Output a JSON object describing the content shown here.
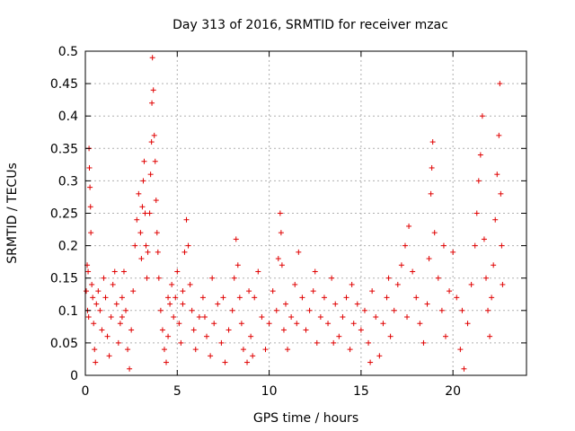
{
  "chart_data": {
    "type": "scatter",
    "title": "Day 313 of 2016, SRMTID for receiver mzac",
    "xlabel": "GPS time / hours",
    "ylabel": "SRMTID / TECUs",
    "xlim": [
      0,
      24
    ],
    "ylim": [
      0,
      0.5
    ],
    "x_ticks": [
      0,
      5,
      10,
      15,
      20
    ],
    "x_tick_labels": [
      "0",
      "5",
      "10",
      "15",
      "20"
    ],
    "y_ticks": [
      0,
      0.05,
      0.1,
      0.15,
      0.2,
      0.25,
      0.3,
      0.35,
      0.4,
      0.45,
      0.5
    ],
    "y_tick_labels": [
      "0",
      "0.05",
      "0.1",
      "0.15",
      "0.2",
      "0.25",
      "0.3",
      "0.35",
      "0.4",
      "0.45",
      "0.5"
    ],
    "grid": true,
    "marker": "+",
    "color": "#e00000",
    "series": [
      {
        "name": "SRMTID",
        "points": [
          [
            0.05,
            0.13
          ],
          [
            0.1,
            0.17
          ],
          [
            0.15,
            0.16
          ],
          [
            0.2,
            0.35
          ],
          [
            0.22,
            0.32
          ],
          [
            0.25,
            0.29
          ],
          [
            0.28,
            0.26
          ],
          [
            0.3,
            0.22
          ],
          [
            0.12,
            0.1
          ],
          [
            0.18,
            0.09
          ],
          [
            0.35,
            0.14
          ],
          [
            0.4,
            0.12
          ],
          [
            0.45,
            0.08
          ],
          [
            0.5,
            0.04
          ],
          [
            0.55,
            0.02
          ],
          [
            0.6,
            0.11
          ],
          [
            0.7,
            0.13
          ],
          [
            0.8,
            0.1
          ],
          [
            0.9,
            0.07
          ],
          [
            1.0,
            0.15
          ],
          [
            1.1,
            0.12
          ],
          [
            1.2,
            0.06
          ],
          [
            1.3,
            0.03
          ],
          [
            1.4,
            0.09
          ],
          [
            1.5,
            0.14
          ],
          [
            1.6,
            0.16
          ],
          [
            1.7,
            0.11
          ],
          [
            1.8,
            0.05
          ],
          [
            1.9,
            0.08
          ],
          [
            2.0,
            0.12
          ],
          [
            2.1,
            0.16
          ],
          [
            2.2,
            0.1
          ],
          [
            2.3,
            0.04
          ],
          [
            2.4,
            0.01
          ],
          [
            2.5,
            0.07
          ],
          [
            2.6,
            0.13
          ],
          [
            2.7,
            0.2
          ],
          [
            2.8,
            0.24
          ],
          [
            2.9,
            0.28
          ],
          [
            3.0,
            0.22
          ],
          [
            3.05,
            0.18
          ],
          [
            3.1,
            0.26
          ],
          [
            3.15,
            0.3
          ],
          [
            3.2,
            0.33
          ],
          [
            3.25,
            0.25
          ],
          [
            3.3,
            0.2
          ],
          [
            3.35,
            0.15
          ],
          [
            3.4,
            0.19
          ],
          [
            3.5,
            0.25
          ],
          [
            3.55,
            0.31
          ],
          [
            3.6,
            0.36
          ],
          [
            3.62,
            0.42
          ],
          [
            3.65,
            0.49
          ],
          [
            3.7,
            0.44
          ],
          [
            3.75,
            0.37
          ],
          [
            3.8,
            0.33
          ],
          [
            3.85,
            0.27
          ],
          [
            3.9,
            0.22
          ],
          [
            3.95,
            0.19
          ],
          [
            4.0,
            0.15
          ],
          [
            4.1,
            0.1
          ],
          [
            4.2,
            0.07
          ],
          [
            4.3,
            0.04
          ],
          [
            4.4,
            0.02
          ],
          [
            4.5,
            0.06
          ],
          [
            4.6,
            0.11
          ],
          [
            4.7,
            0.14
          ],
          [
            4.8,
            0.09
          ],
          [
            4.9,
            0.12
          ],
          [
            5.0,
            0.16
          ],
          [
            5.1,
            0.08
          ],
          [
            5.2,
            0.05
          ],
          [
            5.3,
            0.11
          ],
          [
            5.4,
            0.19
          ],
          [
            5.5,
            0.24
          ],
          [
            5.6,
            0.2
          ],
          [
            5.7,
            0.14
          ],
          [
            5.8,
            0.1
          ],
          [
            5.9,
            0.07
          ],
          [
            6.0,
            0.04
          ],
          [
            6.2,
            0.09
          ],
          [
            6.4,
            0.12
          ],
          [
            6.6,
            0.06
          ],
          [
            6.8,
            0.03
          ],
          [
            7.0,
            0.08
          ],
          [
            7.2,
            0.11
          ],
          [
            7.4,
            0.05
          ],
          [
            7.6,
            0.02
          ],
          [
            7.8,
            0.07
          ],
          [
            8.0,
            0.1
          ],
          [
            8.1,
            0.15
          ],
          [
            8.2,
            0.21
          ],
          [
            8.3,
            0.17
          ],
          [
            8.4,
            0.12
          ],
          [
            8.5,
            0.08
          ],
          [
            8.6,
            0.04
          ],
          [
            8.8,
            0.02
          ],
          [
            9.0,
            0.06
          ],
          [
            9.2,
            0.12
          ],
          [
            9.4,
            0.16
          ],
          [
            9.6,
            0.09
          ],
          [
            9.8,
            0.04
          ],
          [
            10.0,
            0.08
          ],
          [
            10.2,
            0.13
          ],
          [
            10.4,
            0.1
          ],
          [
            10.5,
            0.18
          ],
          [
            10.6,
            0.25
          ],
          [
            10.65,
            0.22
          ],
          [
            10.7,
            0.17
          ],
          [
            10.8,
            0.07
          ],
          [
            11.0,
            0.04
          ],
          [
            11.2,
            0.09
          ],
          [
            11.4,
            0.14
          ],
          [
            11.6,
            0.19
          ],
          [
            11.8,
            0.12
          ],
          [
            12.0,
            0.07
          ],
          [
            12.2,
            0.1
          ],
          [
            12.4,
            0.13
          ],
          [
            12.6,
            0.05
          ],
          [
            12.8,
            0.09
          ],
          [
            13.0,
            0.12
          ],
          [
            13.2,
            0.08
          ],
          [
            13.4,
            0.15
          ],
          [
            13.6,
            0.11
          ],
          [
            13.8,
            0.06
          ],
          [
            14.0,
            0.09
          ],
          [
            14.2,
            0.12
          ],
          [
            14.4,
            0.04
          ],
          [
            14.6,
            0.08
          ],
          [
            14.8,
            0.11
          ],
          [
            15.0,
            0.07
          ],
          [
            15.2,
            0.1
          ],
          [
            15.4,
            0.05
          ],
          [
            15.6,
            0.13
          ],
          [
            15.8,
            0.09
          ],
          [
            16.0,
            0.03
          ],
          [
            16.2,
            0.08
          ],
          [
            16.4,
            0.12
          ],
          [
            16.6,
            0.06
          ],
          [
            16.8,
            0.1
          ],
          [
            17.0,
            0.14
          ],
          [
            17.2,
            0.17
          ],
          [
            17.4,
            0.2
          ],
          [
            17.6,
            0.23
          ],
          [
            17.8,
            0.16
          ],
          [
            18.0,
            0.12
          ],
          [
            18.2,
            0.08
          ],
          [
            18.4,
            0.05
          ],
          [
            18.6,
            0.11
          ],
          [
            18.7,
            0.18
          ],
          [
            18.8,
            0.28
          ],
          [
            18.85,
            0.32
          ],
          [
            18.9,
            0.36
          ],
          [
            19.0,
            0.22
          ],
          [
            19.2,
            0.15
          ],
          [
            19.4,
            0.1
          ],
          [
            19.6,
            0.06
          ],
          [
            19.8,
            0.13
          ],
          [
            20.0,
            0.19
          ],
          [
            20.2,
            0.12
          ],
          [
            20.4,
            0.04
          ],
          [
            20.6,
            0.01
          ],
          [
            20.8,
            0.08
          ],
          [
            21.0,
            0.14
          ],
          [
            21.2,
            0.2
          ],
          [
            21.3,
            0.25
          ],
          [
            21.4,
            0.3
          ],
          [
            21.5,
            0.34
          ],
          [
            21.6,
            0.4
          ],
          [
            21.7,
            0.21
          ],
          [
            21.8,
            0.15
          ],
          [
            21.9,
            0.1
          ],
          [
            22.0,
            0.06
          ],
          [
            22.1,
            0.12
          ],
          [
            22.2,
            0.17
          ],
          [
            22.3,
            0.24
          ],
          [
            22.4,
            0.31
          ],
          [
            22.5,
            0.37
          ],
          [
            22.55,
            0.45
          ],
          [
            22.6,
            0.28
          ],
          [
            22.65,
            0.2
          ],
          [
            22.7,
            0.14
          ],
          [
            5.3,
            0.13
          ],
          [
            6.5,
            0.09
          ],
          [
            7.5,
            0.12
          ],
          [
            9.1,
            0.03
          ],
          [
            11.5,
            0.08
          ],
          [
            13.5,
            0.05
          ],
          [
            14.5,
            0.14
          ],
          [
            15.5,
            0.02
          ],
          [
            16.5,
            0.15
          ],
          [
            17.5,
            0.09
          ],
          [
            19.5,
            0.2
          ],
          [
            20.5,
            0.1
          ],
          [
            12.5,
            0.16
          ],
          [
            10.9,
            0.11
          ],
          [
            8.9,
            0.13
          ],
          [
            6.9,
            0.15
          ],
          [
            4.5,
            0.12
          ],
          [
            2.0,
            0.09
          ]
        ]
      }
    ]
  }
}
